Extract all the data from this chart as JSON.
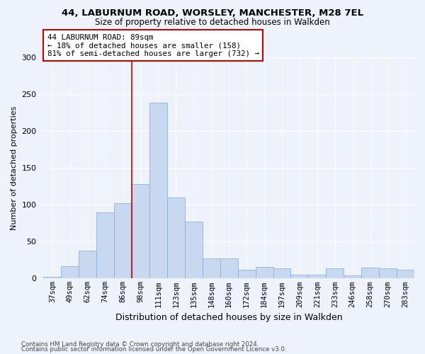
{
  "title1": "44, LABURNUM ROAD, WORSLEY, MANCHESTER, M28 7EL",
  "title2": "Size of property relative to detached houses in Walkden",
  "xlabel": "Distribution of detached houses by size in Walkden",
  "ylabel": "Number of detached properties",
  "categories": [
    "37sqm",
    "49sqm",
    "62sqm",
    "74sqm",
    "86sqm",
    "98sqm",
    "111sqm",
    "123sqm",
    "135sqm",
    "148sqm",
    "160sqm",
    "172sqm",
    "184sqm",
    "197sqm",
    "209sqm",
    "221sqm",
    "233sqm",
    "246sqm",
    "258sqm",
    "270sqm",
    "283sqm"
  ],
  "bar_heights": [
    2,
    17,
    38,
    90,
    102,
    128,
    238,
    110,
    77,
    27,
    27,
    12,
    16,
    14,
    5,
    5,
    14,
    4,
    15,
    14,
    12
  ],
  "bar_color": "#c8d8f0",
  "bar_edge_color": "#8ab4d8",
  "vline_color": "#cc0000",
  "vline_x": 4.5,
  "annotation_text": "44 LABURNUM ROAD: 89sqm\n← 18% of detached houses are smaller (158)\n81% of semi-detached houses are larger (732) →",
  "annotation_box_color": "#ffffff",
  "annotation_box_edge": "#cc0000",
  "ylim": [
    0,
    300
  ],
  "yticks": [
    0,
    50,
    100,
    150,
    200,
    250,
    300
  ],
  "footer1": "Contains HM Land Registry data © Crown copyright and database right 2024.",
  "footer2": "Contains public sector information licensed under the Open Government Licence v3.0.",
  "bg_color": "#eef2fb",
  "grid_color": "#ffffff"
}
